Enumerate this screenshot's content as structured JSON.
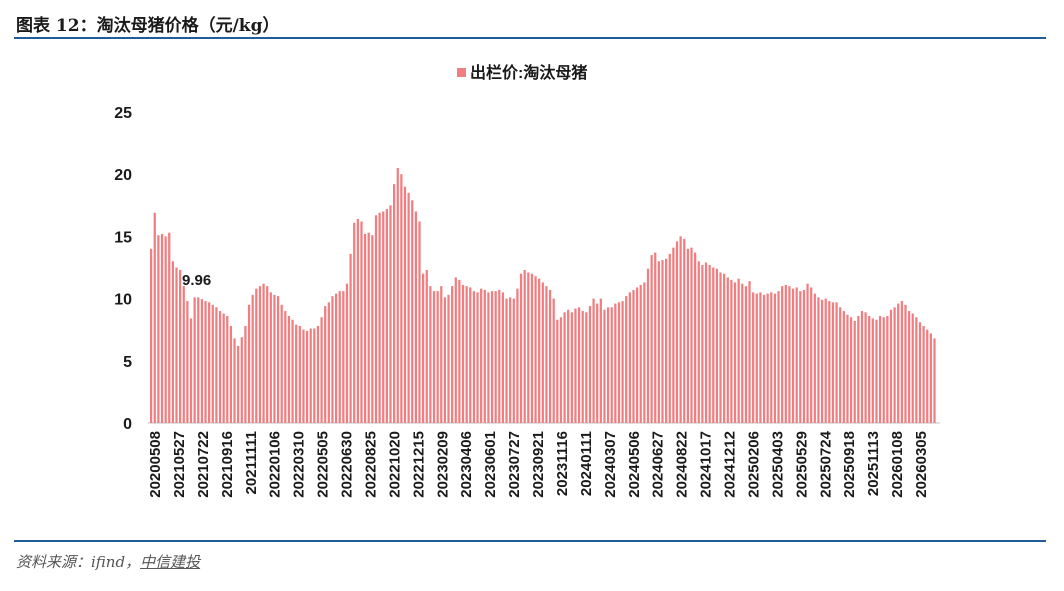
{
  "figure_title": "图表 12：淘汰母猪价格（元/kg）",
  "source": {
    "prefix": "资料来源：ifind，",
    "brand": "中信建投"
  },
  "colors": {
    "bar": "#f07e80",
    "rule": "#1f5c99",
    "text": "#1a1a1a"
  },
  "chart_data": {
    "type": "bar",
    "title": "",
    "legend": {
      "label": "出栏价:淘汰母猪",
      "placement": "top-center"
    },
    "xlabel": "",
    "ylabel": "",
    "ylim": [
      0,
      25
    ],
    "yticks": [
      0,
      5,
      10,
      15,
      20,
      25
    ],
    "xtick_labels": [
      "20200508",
      "20210527",
      "20210722",
      "20210916",
      "20211111",
      "20220106",
      "20220310",
      "20220505",
      "20220630",
      "20220825",
      "20221020",
      "20221215",
      "20230209",
      "20230406",
      "20230601",
      "20230727",
      "20230921",
      "20231116",
      "20240111",
      "20240307",
      "20240506",
      "20240627",
      "20240822",
      "20241017",
      "20241212",
      "20250206",
      "20250403",
      "20250529",
      "20250724",
      "20250918",
      "20251113",
      "20260108",
      "20260305"
    ],
    "annotation": {
      "text": "9.96",
      "value": 9.96
    },
    "series": [
      {
        "name": "出栏价:淘汰母猪",
        "values": [
          14.0,
          16.9,
          15.1,
          15.2,
          15.0,
          15.3,
          13.0,
          12.5,
          12.3,
          11.0,
          9.8,
          8.4,
          10.1,
          10.1,
          9.96,
          9.8,
          9.7,
          9.5,
          9.3,
          9.0,
          8.8,
          8.6,
          7.8,
          6.8,
          6.2,
          6.9,
          7.8,
          9.5,
          10.3,
          10.8,
          11.0,
          11.2,
          11.0,
          10.5,
          10.3,
          10.2,
          9.5,
          9.0,
          8.6,
          8.3,
          7.9,
          7.8,
          7.5,
          7.4,
          7.6,
          7.6,
          7.8,
          8.5,
          9.4,
          9.7,
          10.2,
          10.4,
          10.6,
          10.6,
          11.2,
          13.6,
          16.1,
          16.4,
          16.2,
          15.2,
          15.3,
          15.1,
          16.7,
          16.9,
          17.0,
          17.2,
          17.5,
          19.2,
          20.5,
          20.0,
          19.0,
          18.5,
          17.9,
          17.0,
          16.2,
          12.0,
          12.3,
          11.0,
          10.6,
          10.6,
          11.0,
          10.1,
          10.3,
          11.0,
          11.7,
          11.5,
          11.1,
          11.0,
          10.9,
          10.6,
          10.5,
          10.8,
          10.7,
          10.5,
          10.6,
          10.6,
          10.7,
          10.5,
          10.0,
          10.1,
          10.0,
          10.8,
          12.0,
          12.3,
          12.1,
          12.0,
          11.8,
          11.6,
          11.3,
          11.0,
          10.7,
          10.0,
          8.3,
          8.5,
          8.9,
          9.1,
          8.9,
          9.2,
          9.3,
          9.0,
          8.9,
          9.4,
          10.0,
          9.6,
          10.0,
          9.1,
          9.3,
          9.3,
          9.6,
          9.7,
          9.8,
          10.2,
          10.5,
          10.7,
          10.9,
          11.1,
          11.3,
          12.4,
          13.5,
          13.7,
          13.0,
          13.1,
          13.2,
          13.6,
          14.1,
          14.6,
          15.0,
          14.8,
          14.0,
          14.1,
          13.7,
          13.0,
          12.7,
          12.9,
          12.7,
          12.5,
          12.4,
          12.1,
          12.0,
          11.7,
          11.5,
          11.3,
          11.6,
          11.2,
          11.0,
          11.4,
          10.5,
          10.4,
          10.5,
          10.3,
          10.4,
          10.5,
          10.4,
          10.6,
          11.0,
          11.1,
          11.0,
          10.8,
          10.9,
          10.6,
          10.7,
          11.2,
          10.9,
          10.4,
          10.1,
          9.9,
          10.0,
          9.8,
          9.7,
          9.7,
          9.3,
          9.0,
          8.7,
          8.5,
          8.2,
          8.6,
          9.0,
          8.9,
          8.6,
          8.4,
          8.3,
          8.6,
          8.5,
          8.6,
          9.1,
          9.3,
          9.6,
          9.8,
          9.5,
          9.0,
          8.8,
          8.5,
          8.1,
          7.8,
          7.5,
          7.2,
          6.8
        ]
      }
    ]
  }
}
